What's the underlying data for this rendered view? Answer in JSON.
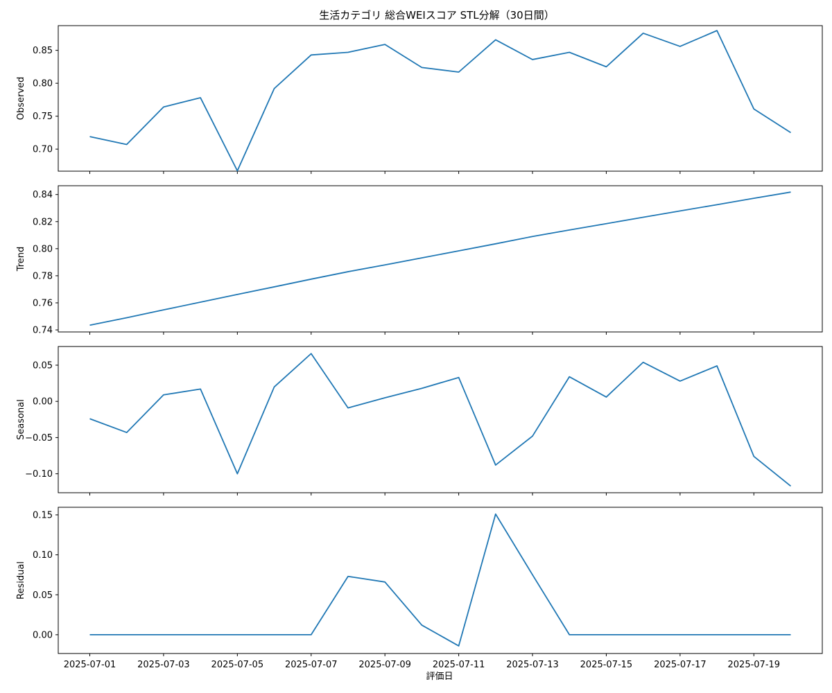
{
  "chart_data": {
    "type": "line",
    "title": "生活カテゴリ 総合WEIスコア STL分解（30日間）",
    "xlabel": "評価日",
    "x_tick_labels": [
      "2025-07-01",
      "2025-07-03",
      "2025-07-05",
      "2025-07-07",
      "2025-07-09",
      "2025-07-11",
      "2025-07-13",
      "2025-07-15",
      "2025-07-17",
      "2025-07-19"
    ],
    "x": [
      "2025-07-01",
      "2025-07-02",
      "2025-07-03",
      "2025-07-04",
      "2025-07-05",
      "2025-07-06",
      "2025-07-07",
      "2025-07-08",
      "2025-07-09",
      "2025-07-10",
      "2025-07-11",
      "2025-07-12",
      "2025-07-13",
      "2025-07-14",
      "2025-07-15",
      "2025-07-16",
      "2025-07-17",
      "2025-07-18",
      "2025-07-19",
      "2025-07-20"
    ],
    "line_color": "#1f77b4",
    "grid": false,
    "panels": [
      {
        "ylabel": "Observed",
        "ylim": [
          0.6665,
          0.8875
        ],
        "y_ticks": [
          0.7,
          0.75,
          0.8,
          0.85
        ],
        "y_tick_labels": [
          "0.70",
          "0.75",
          "0.80",
          "0.85"
        ],
        "values": [
          0.719,
          0.707,
          0.764,
          0.778,
          0.667,
          0.792,
          0.843,
          0.847,
          0.859,
          0.824,
          0.817,
          0.866,
          0.836,
          0.847,
          0.825,
          0.876,
          0.856,
          0.88,
          0.761,
          0.725
        ]
      },
      {
        "ylabel": "Trend",
        "ylim": [
          0.7385,
          0.8465
        ],
        "y_ticks": [
          0.74,
          0.76,
          0.78,
          0.8,
          0.82,
          0.84
        ],
        "y_tick_labels": [
          "0.74",
          "0.76",
          "0.78",
          "0.80",
          "0.82",
          "0.84"
        ],
        "values": [
          0.7435,
          0.749,
          0.7548,
          0.7605,
          0.7662,
          0.7718,
          0.7775,
          0.783,
          0.788,
          0.7932,
          0.7984,
          0.8036,
          0.809,
          0.8138,
          0.8185,
          0.8232,
          0.8279,
          0.8325,
          0.8372,
          0.8418
        ]
      },
      {
        "ylabel": "Seasonal",
        "ylim": [
          -0.1262,
          0.0758
        ],
        "y_ticks": [
          -0.1,
          -0.05,
          0.0,
          0.05
        ],
        "y_tick_labels": [
          "−0.10",
          "−0.05",
          "0.00",
          "0.05"
        ],
        "values": [
          -0.024,
          -0.043,
          0.009,
          0.017,
          -0.1,
          0.02,
          0.066,
          -0.009,
          0.005,
          0.018,
          0.033,
          -0.088,
          -0.048,
          0.034,
          0.006,
          0.054,
          0.028,
          0.049,
          -0.076,
          -0.117
        ]
      },
      {
        "ylabel": "Residual",
        "ylim": [
          -0.0235,
          0.1595
        ],
        "y_ticks": [
          0.0,
          0.05,
          0.1,
          0.15
        ],
        "y_tick_labels": [
          "0.00",
          "0.05",
          "0.10",
          "0.15"
        ],
        "values": [
          0.0,
          0.0,
          0.0,
          0.0,
          0.0,
          0.0,
          0.0,
          0.073,
          0.066,
          0.012,
          -0.014,
          0.151,
          0.075,
          0.0,
          0.0,
          0.0,
          0.0,
          0.0,
          0.0,
          0.0
        ]
      }
    ]
  }
}
